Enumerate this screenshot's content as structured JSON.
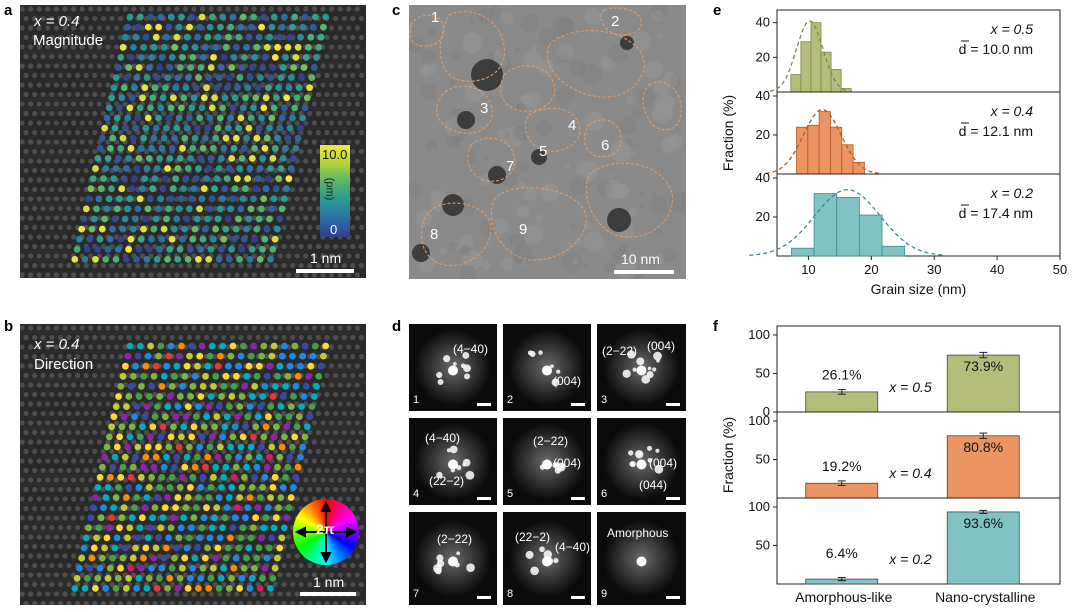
{
  "panels": {
    "a": {
      "label": "a",
      "x_text": "x = 0.4",
      "subtitle": "Magnitude",
      "colorbar_max": "10.0",
      "colorbar_min": "0",
      "colorbar_unit": "(pm)",
      "scalebar": "1 nm"
    },
    "b": {
      "label": "b",
      "x_text": "x = 0.4",
      "subtitle": "Direction",
      "wheel_label": "2π",
      "scalebar": "1 nm"
    },
    "c": {
      "label": "c",
      "grain_labels": [
        "1",
        "2",
        "3",
        "4",
        "5",
        "6",
        "7",
        "8",
        "9"
      ],
      "scalebar": "10 nm"
    },
    "d": {
      "label": "d",
      "cells": [
        {
          "num": "1",
          "labels": [
            "(4−40)"
          ]
        },
        {
          "num": "2",
          "labels": [
            "(004)"
          ]
        },
        {
          "num": "3",
          "labels": [
            "(2−22)",
            "(004)"
          ]
        },
        {
          "num": "4",
          "labels": [
            "(4−40)",
            "(22−2)"
          ]
        },
        {
          "num": "5",
          "labels": [
            "(2−22)",
            "(004)"
          ]
        },
        {
          "num": "6",
          "labels": [
            "(004)",
            "(044)"
          ]
        },
        {
          "num": "7",
          "labels": [
            "(2−22)"
          ]
        },
        {
          "num": "8",
          "labels": [
            "(22−2)",
            "(4−40)"
          ]
        },
        {
          "num": "9",
          "labels": [
            "Amorphous"
          ]
        }
      ]
    },
    "e": {
      "label": "e"
    },
    "f": {
      "label": "f"
    }
  },
  "chart_data": [
    {
      "panel": "e",
      "type": "bar",
      "xlabel": "Grain size (nm)",
      "ylabel": "Fraction (%)",
      "xlim": [
        5,
        50
      ],
      "x_ticks": [
        10,
        20,
        30,
        40,
        50
      ],
      "subplots": [
        {
          "x_label": "x = 0.5",
          "d_label": "d = 10.0 nm",
          "color": "#b5bd7c",
          "edge": "#7d8747",
          "ylim": [
            0,
            45
          ],
          "y_ticks": [
            20,
            40
          ],
          "bin_width": 1.6,
          "x": [
            8,
            9.6,
            11.2,
            12.8,
            14.4,
            16
          ],
          "values": [
            10,
            29,
            40,
            23,
            13,
            2
          ],
          "fit_center": 10.2,
          "fit_sigma": 2.1,
          "fit_peak": 41
        },
        {
          "x_label": "x = 0.4",
          "d_label": "d = 12.1 nm",
          "color": "#ec9560",
          "edge": "#b05c2a",
          "ylim": [
            0,
            40
          ],
          "y_ticks": [
            20,
            40
          ],
          "bin_width": 1.8,
          "x": [
            9,
            10.8,
            12.6,
            14.4,
            16.2,
            18
          ],
          "values": [
            24,
            25,
            32,
            24,
            15,
            6
          ],
          "fit_center": 12.2,
          "fit_sigma": 3.0,
          "fit_peak": 33
        },
        {
          "x_label": "x = 0.2",
          "d_label": "d = 17.4 nm",
          "color": "#81c2c4",
          "edge": "#3e8c8f",
          "ylim": [
            0,
            40
          ],
          "y_ticks": [
            20,
            40
          ],
          "bin_width": 3.6,
          "x": [
            9.1,
            12.7,
            16.3,
            19.9,
            23.5,
            27.1
          ],
          "values": [
            4,
            32,
            30,
            21,
            5,
            0
          ],
          "fit_center": 16.2,
          "fit_sigma": 5.2,
          "fit_peak": 34
        }
      ]
    },
    {
      "panel": "f",
      "type": "bar",
      "ylabel": "Fraction (%)",
      "categories": [
        "Amorphous-like",
        "Nano-crystalline"
      ],
      "ylim": [
        0,
        100
      ],
      "y_ticks": [
        0,
        50,
        100
      ],
      "colors_amorphous": [
        "#b5bd7c",
        "#ec9560",
        "#81c2c4"
      ],
      "colors_nano": [
        "#b5bd7c",
        "#ec9560",
        "#81c2c4"
      ],
      "series": [
        {
          "name": "x = 0.5",
          "values": [
            26.1,
            73.9
          ],
          "errors": [
            6,
            7
          ],
          "labels": [
            "26.1%",
            "73.9%"
          ]
        },
        {
          "name": "x = 0.4",
          "values": [
            19.2,
            80.8
          ],
          "errors": [
            6,
            7
          ],
          "labels": [
            "19.2%",
            "80.8%"
          ]
        },
        {
          "name": "x = 0.2",
          "values": [
            6.4,
            93.6
          ],
          "errors": [
            4,
            4
          ],
          "labels": [
            "6.4%",
            "93.6%"
          ]
        }
      ]
    }
  ]
}
